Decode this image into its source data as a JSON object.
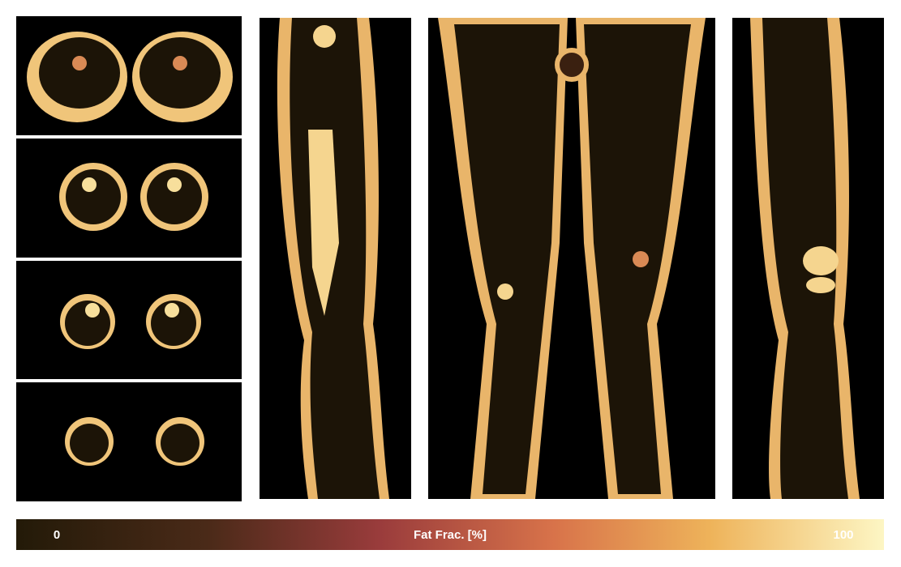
{
  "colorbar": {
    "min_label": 0,
    "label": "Fat Frac. [%]",
    "max_label": 100
  }
}
